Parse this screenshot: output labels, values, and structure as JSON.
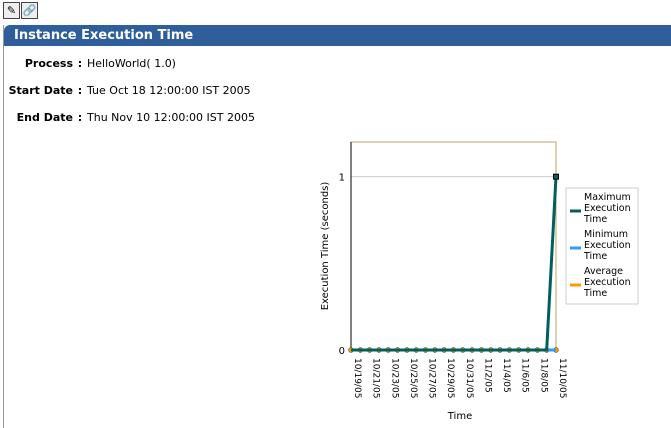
{
  "toolbar": {
    "icons": [
      "pencil-icon",
      "link-icon"
    ]
  },
  "panel": {
    "title": "Instance Execution Time"
  },
  "fields": [
    {
      "label": "Process",
      "sep": ":",
      "value": "HelloWorld( 1.0)"
    },
    {
      "label": "Start Date",
      "sep": ":",
      "value": "Tue Oct 18 12:00:00 IST 2005"
    },
    {
      "label": "End Date",
      "sep": ":",
      "value": "Thu Nov 10 12:00:00 IST 2005"
    }
  ],
  "chart_data": {
    "type": "line",
    "xlabel": "Time",
    "ylabel": "Execution Time (seconds)",
    "ylim": [
      0,
      1.2
    ],
    "yticks": [
      0,
      1
    ],
    "xticks": [
      "10/19/05",
      "10/21/05",
      "10/23/05",
      "10/25/05",
      "10/27/05",
      "10/29/05",
      "10/31/05",
      "11/2/05",
      "11/4/05",
      "11/6/05",
      "11/8/05",
      "11/10/05"
    ],
    "x": [
      "10/19/05",
      "10/20/05",
      "10/21/05",
      "10/22/05",
      "10/23/05",
      "10/24/05",
      "10/25/05",
      "10/26/05",
      "10/27/05",
      "10/28/05",
      "10/29/05",
      "10/30/05",
      "10/31/05",
      "11/1/05",
      "11/2/05",
      "11/3/05",
      "11/4/05",
      "11/5/05",
      "11/6/05",
      "11/7/05",
      "11/8/05",
      "11/9/05",
      "11/10/05"
    ],
    "series": [
      {
        "name": "Maximum Execution Time",
        "color": "#005f5f",
        "values": [
          0,
          0,
          0,
          0,
          0,
          0,
          0,
          0,
          0,
          0,
          0,
          0,
          0,
          0,
          0,
          0,
          0,
          0,
          0,
          0,
          0,
          0,
          1
        ]
      },
      {
        "name": "Minimum Execution Time",
        "color": "#3399ff",
        "values": [
          0,
          0,
          0,
          0,
          0,
          0,
          0,
          0,
          0,
          0,
          0,
          0,
          0,
          0,
          0,
          0,
          0,
          0,
          0,
          0,
          0,
          0,
          1
        ]
      },
      {
        "name": "Average Execution Time",
        "color": "#ff9900",
        "values": [
          0,
          0,
          0,
          0,
          0,
          0,
          0,
          0,
          0,
          0,
          0,
          0,
          0,
          0,
          0,
          0,
          0,
          0,
          0,
          0,
          0,
          0,
          1
        ]
      }
    ],
    "legend": {
      "position": "right",
      "lines": [
        [
          "Maximum",
          "Execution",
          "Time"
        ],
        [
          "Minimum",
          "Execution",
          "Time"
        ],
        [
          "Average",
          "Execution",
          "Time"
        ]
      ]
    },
    "grid": true
  }
}
